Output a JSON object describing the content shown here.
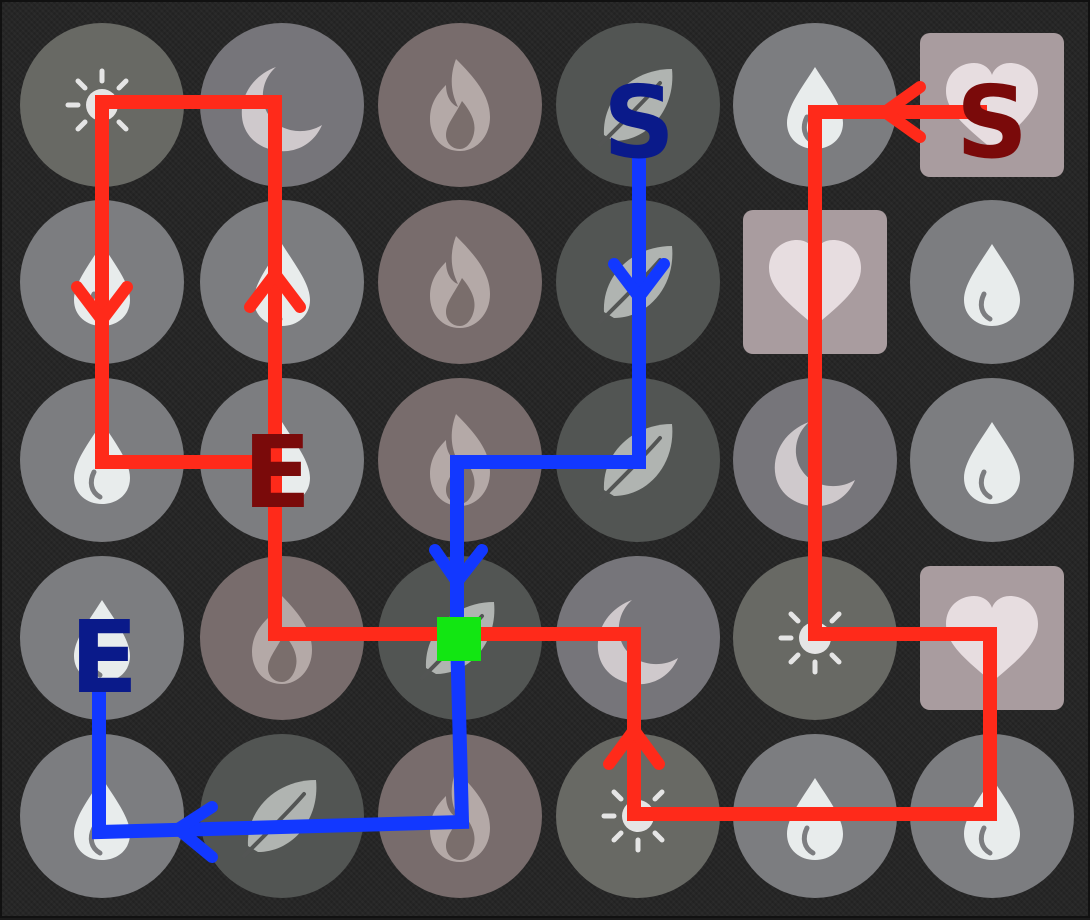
{
  "board": {
    "rows": 5,
    "cols": 6,
    "tiles": [
      [
        "sun",
        "moon",
        "fire",
        "leaf",
        "water",
        "heart"
      ],
      [
        "water",
        "water",
        "fire",
        "leaf",
        "heart",
        "water"
      ],
      [
        "water",
        "water",
        "fire",
        "leaf",
        "moon",
        "water"
      ],
      [
        "water",
        "fire",
        "leaf",
        "moon",
        "sun",
        "heart"
      ],
      [
        "water",
        "leaf",
        "fire",
        "sun",
        "water",
        "water"
      ]
    ]
  },
  "colors": {
    "red_path": "#ff2a1a",
    "blue_path": "#1238ff",
    "red_label": "#7a0a0a",
    "blue_label": "#0a1a8a",
    "junction": "#12e612"
  },
  "labels": {
    "blue_start": "S",
    "blue_end": "E",
    "red_start": "S",
    "red_end": "E"
  }
}
